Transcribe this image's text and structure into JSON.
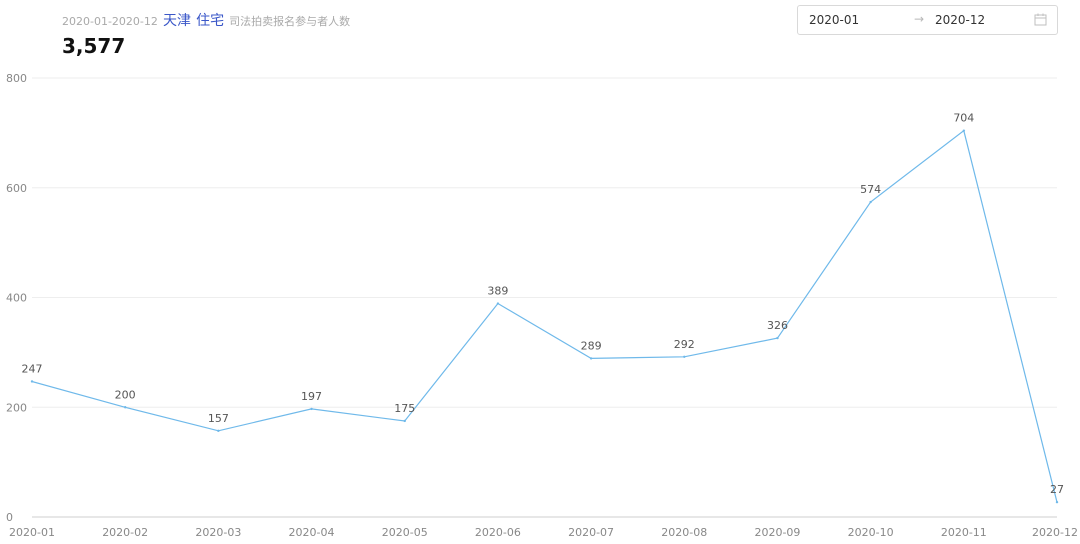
{
  "header": {
    "range": "2020-01-2020-12",
    "city": "天津",
    "property_type": "住宅",
    "description": "司法拍卖报名参与者人数",
    "total": "3,577"
  },
  "date_picker": {
    "start": "2020-01",
    "separator": "→",
    "end": "2020-12",
    "icon": "calendar-icon"
  },
  "colors": {
    "line": "#6fb9ea",
    "accent": "#3a57c8"
  },
  "chart_data": {
    "type": "line",
    "categories": [
      "2020-01",
      "2020-02",
      "2020-03",
      "2020-04",
      "2020-05",
      "2020-06",
      "2020-07",
      "2020-08",
      "2020-09",
      "2020-10",
      "2020-11",
      "2020-12"
    ],
    "series": [
      {
        "values": [
          247,
          200,
          157,
          197,
          175,
          389,
          289,
          292,
          326,
          574,
          704,
          27
        ]
      }
    ],
    "ylim": [
      0,
      800
    ],
    "yticks": [
      0,
      200,
      400,
      600,
      800
    ],
    "grid": true,
    "data_labels": true
  }
}
